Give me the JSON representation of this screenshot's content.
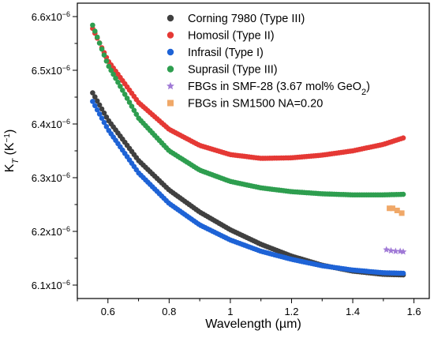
{
  "chart_data": {
    "type": "scatter",
    "xlabel": "Wavelength (µm)",
    "ylabel_main": "K",
    "ylabel_sub": "T",
    "ylabel_paren": " (K",
    "ylabel_exp": "−1",
    "ylabel_close": ")",
    "xlim": [
      0.5,
      1.65
    ],
    "ylim": [
      6.075e-06,
      6.625e-06
    ],
    "x_ticks": [
      {
        "v": 0.6,
        "label": "0.6"
      },
      {
        "v": 0.8,
        "label": "0.8"
      },
      {
        "v": 1.0,
        "label": "1"
      },
      {
        "v": 1.2,
        "label": "1.2"
      },
      {
        "v": 1.4,
        "label": "1.4"
      },
      {
        "v": 1.6,
        "label": "1.6"
      }
    ],
    "y_ticks": [
      {
        "v": 6.1e-06,
        "mant": "6.1x10",
        "exp": "−6"
      },
      {
        "v": 6.2e-06,
        "mant": "6.2x10",
        "exp": "−6"
      },
      {
        "v": 6.3e-06,
        "mant": "6.3x10",
        "exp": "−6"
      },
      {
        "v": 6.4e-06,
        "mant": "6.4x10",
        "exp": "−6"
      },
      {
        "v": 6.5e-06,
        "mant": "6.5x10",
        "exp": "−6"
      },
      {
        "v": 6.6e-06,
        "mant": "6.6x10",
        "exp": "−6"
      }
    ],
    "legend_position": "top-right",
    "series": [
      {
        "name": "Corning 7980 (Type III)",
        "marker": "circle",
        "color": "#404040",
        "x": [
          0.55,
          0.6,
          0.7,
          0.8,
          0.9,
          1.0,
          1.1,
          1.2,
          1.3,
          1.4,
          1.5,
          1.565
        ],
        "y": [
          6.458e-06,
          6.408e-06,
          6.332e-06,
          6.277e-06,
          6.236e-06,
          6.203e-06,
          6.176e-06,
          6.154e-06,
          6.137e-06,
          6.126e-06,
          6.12e-06,
          6.119e-06
        ]
      },
      {
        "name": "Homosil (Type II)",
        "marker": "circle",
        "color": "#e53935",
        "x": [
          0.55,
          0.6,
          0.7,
          0.8,
          0.9,
          1.0,
          1.1,
          1.2,
          1.3,
          1.4,
          1.5,
          1.565
        ],
        "y": [
          6.578e-06,
          6.518e-06,
          6.44e-06,
          6.39e-06,
          6.36e-06,
          6.343e-06,
          6.336e-06,
          6.337e-06,
          6.342e-06,
          6.35e-06,
          6.362e-06,
          6.374e-06
        ]
      },
      {
        "name": "Infrasil (Type I)",
        "marker": "circle",
        "color": "#1e63d6",
        "x": [
          0.55,
          0.6,
          0.7,
          0.8,
          0.9,
          1.0,
          1.1,
          1.2,
          1.3,
          1.4,
          1.5,
          1.565
        ],
        "y": [
          6.442e-06,
          6.39e-06,
          6.309e-06,
          6.252e-06,
          6.212e-06,
          6.184e-06,
          6.163e-06,
          6.148e-06,
          6.136e-06,
          6.128e-06,
          6.123e-06,
          6.122e-06
        ]
      },
      {
        "name": "Suprasil (Type III)",
        "marker": "circle",
        "color": "#2e9e4f",
        "x": [
          0.55,
          0.6,
          0.7,
          0.8,
          0.9,
          1.0,
          1.1,
          1.2,
          1.3,
          1.4,
          1.5,
          1.565
        ],
        "y": [
          6.584e-06,
          6.51e-06,
          6.411e-06,
          6.35e-06,
          6.314e-06,
          6.293e-06,
          6.281e-06,
          6.274e-06,
          6.27e-06,
          6.268e-06,
          6.268e-06,
          6.269e-06
        ]
      },
      {
        "name_main": "FBGs in SMF-28 (3.67 mol% GeO",
        "name_sub": "2",
        "name_close": ")",
        "marker": "star",
        "color": "#a07ad6",
        "x": [
          1.51,
          1.525,
          1.54,
          1.555,
          1.565
        ],
        "y": [
          6.166e-06,
          6.164e-06,
          6.163e-06,
          6.163e-06,
          6.162e-06
        ]
      },
      {
        "name": "FBGs in SM1500 NA=0.20",
        "marker": "square",
        "color": "#f0a868",
        "x": [
          1.52,
          1.53,
          1.545,
          1.56
        ],
        "y": [
          6.243e-06,
          6.243e-06,
          6.239e-06,
          6.234e-06
        ]
      }
    ]
  }
}
